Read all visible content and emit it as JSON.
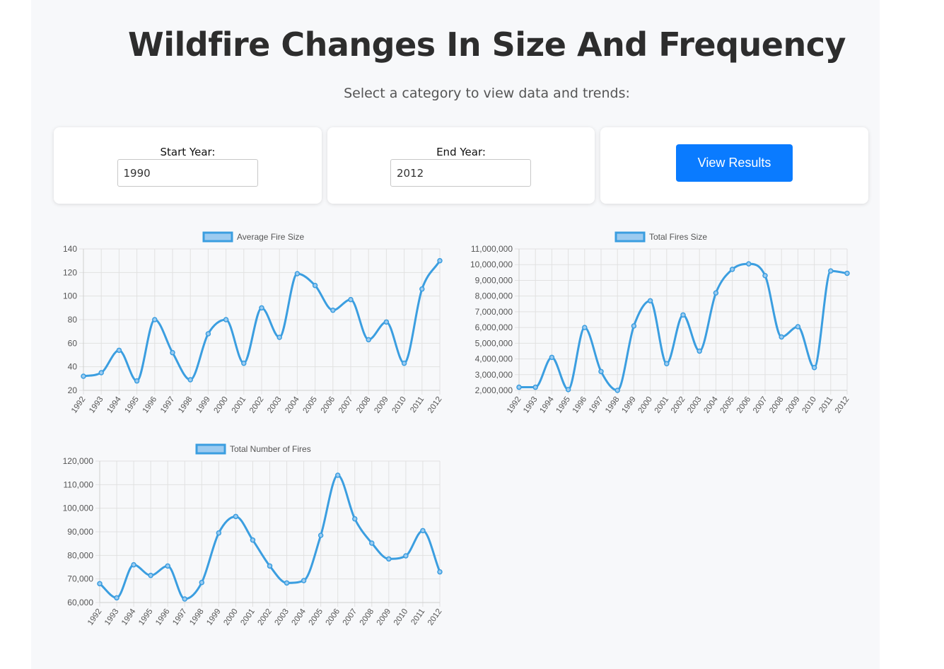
{
  "header": {
    "title": "Wildfire Changes In Size And Frequency",
    "subtitle": "Select a category to view data and trends:"
  },
  "controls": {
    "start_label": "Start Year:",
    "start_value": "1990",
    "end_label": "End Year:",
    "end_value": "2012",
    "button_label": "View Results"
  },
  "colors": {
    "line": "#3b9ee0",
    "legend_fill": "#9ccbf0",
    "grid": "#e1e1e1",
    "button": "#0a7bff"
  },
  "chart_data": [
    {
      "type": "line",
      "series": [
        {
          "name": "Average Fire Size",
          "values": [
            32,
            35,
            54,
            28,
            80,
            52,
            29,
            68,
            80,
            43,
            90,
            65,
            119,
            109,
            88,
            97,
            63,
            78,
            43,
            106,
            130
          ]
        }
      ],
      "categories": [
        "1992",
        "1993",
        "1994",
        "1995",
        "1996",
        "1997",
        "1998",
        "1999",
        "2000",
        "2001",
        "2002",
        "2003",
        "2004",
        "2005",
        "2006",
        "2007",
        "2008",
        "2009",
        "2010",
        "2011",
        "2012"
      ],
      "ylim": [
        20,
        140
      ],
      "yticks": [
        20,
        40,
        60,
        80,
        100,
        120,
        140
      ],
      "ytick_labels": [
        "20",
        "40",
        "60",
        "80",
        "100",
        "120",
        "140"
      ],
      "grid": true,
      "legend": "top-center"
    },
    {
      "type": "line",
      "series": [
        {
          "name": "Total Fires Size",
          "values": [
            2200000,
            2200000,
            4100000,
            2050000,
            6000000,
            3200000,
            2000000,
            6100000,
            7700000,
            3700000,
            6800000,
            4500000,
            8200000,
            9700000,
            10050000,
            9300000,
            5400000,
            6050000,
            3450000,
            9600000,
            9450000
          ]
        }
      ],
      "categories": [
        "1992",
        "1993",
        "1994",
        "1995",
        "1996",
        "1997",
        "1998",
        "1999",
        "2000",
        "2001",
        "2002",
        "2003",
        "2004",
        "2005",
        "2006",
        "2007",
        "2008",
        "2009",
        "2010",
        "2011",
        "2012"
      ],
      "ylim": [
        2000000,
        11000000
      ],
      "yticks": [
        2000000,
        3000000,
        4000000,
        5000000,
        6000000,
        7000000,
        8000000,
        9000000,
        10000000,
        11000000
      ],
      "ytick_labels": [
        "2,000,000",
        "3,000,000",
        "4,000,000",
        "5,000,000",
        "6,000,000",
        "7,000,000",
        "8,000,000",
        "9,000,000",
        "10,000,000",
        "11,000,000"
      ],
      "grid": true,
      "legend": "top-center"
    },
    {
      "type": "line",
      "series": [
        {
          "name": "Total Number of Fires",
          "values": [
            68000,
            62000,
            76000,
            71500,
            75500,
            61500,
            68500,
            89500,
            96500,
            86500,
            75500,
            68300,
            69300,
            88500,
            114000,
            95500,
            85200,
            78500,
            79800,
            90500,
            73000
          ]
        }
      ],
      "categories": [
        "1992",
        "1993",
        "1994",
        "1995",
        "1996",
        "1997",
        "1998",
        "1999",
        "2000",
        "2001",
        "2002",
        "2003",
        "2004",
        "2005",
        "2006",
        "2007",
        "2008",
        "2009",
        "2010",
        "2011",
        "2012"
      ],
      "ylim": [
        60000,
        120000
      ],
      "yticks": [
        60000,
        70000,
        80000,
        90000,
        100000,
        110000,
        120000
      ],
      "ytick_labels": [
        "60,000",
        "70,000",
        "80,000",
        "90,000",
        "100,000",
        "110,000",
        "120,000"
      ],
      "grid": true,
      "legend": "top-center"
    }
  ]
}
